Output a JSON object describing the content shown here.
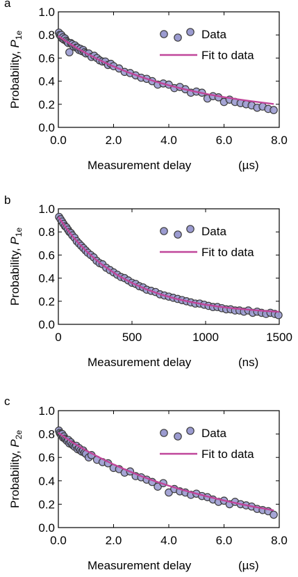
{
  "colors": {
    "marker_fill": "#9b9bd0",
    "marker_stroke": "#3c3c3c",
    "fit_line": "#c0469a",
    "axis": "#000000"
  },
  "chart_data": [
    {
      "type": "scatter",
      "panel_label": "a",
      "ylabel_prefix": "Probability, ",
      "ylabel_symbol": "P",
      "ylabel_subscript": "1e",
      "xlabel": "Measurement delay",
      "xunit": "(µs)",
      "xlim": [
        0,
        8
      ],
      "ylim": [
        0,
        1
      ],
      "xticks": [
        0,
        2,
        4,
        6,
        8
      ],
      "xtick_labels": [
        "0.0",
        "2.0",
        "4.0",
        "6.0",
        "8.0"
      ],
      "yticks": [
        0,
        0.2,
        0.4,
        0.6,
        0.8,
        1.0
      ],
      "ytick_labels": [
        "0.0",
        "0.2",
        "0.4",
        "0.6",
        "0.8",
        "1.0"
      ],
      "legend": [
        "Data",
        "Fit to data"
      ],
      "legend_position": "top-right",
      "fit": {
        "name": "Fit to data",
        "x": [
          0,
          0.25,
          0.5,
          0.75,
          1,
          1.5,
          2,
          2.5,
          3,
          3.5,
          4,
          4.5,
          5,
          5.5,
          6,
          6.5,
          7,
          7.5,
          7.8
        ],
        "y": [
          0.79,
          0.75,
          0.712,
          0.676,
          0.643,
          0.581,
          0.527,
          0.479,
          0.436,
          0.398,
          0.364,
          0.334,
          0.307,
          0.283,
          0.262,
          0.243,
          0.226,
          0.211,
          0.202
        ]
      },
      "data": {
        "name": "Data",
        "x": [
          0.02,
          0.05,
          0.08,
          0.11,
          0.14,
          0.17,
          0.2,
          0.24,
          0.28,
          0.32,
          0.36,
          0.4,
          0.45,
          0.5,
          0.55,
          0.6,
          0.65,
          0.7,
          0.75,
          0.8,
          0.85,
          0.9,
          0.95,
          1.0,
          1.1,
          1.2,
          1.3,
          1.4,
          1.5,
          1.6,
          1.7,
          1.8,
          1.9,
          2.0,
          2.2,
          2.4,
          2.6,
          2.8,
          3.0,
          3.2,
          3.4,
          3.6,
          3.8,
          4.0,
          4.2,
          4.4,
          4.6,
          4.8,
          5.0,
          5.2,
          5.4,
          5.6,
          5.8,
          6.0,
          6.2,
          6.4,
          6.6,
          6.8,
          7.0,
          7.2,
          7.4,
          7.6,
          7.8
        ],
        "y": [
          0.82,
          0.8,
          0.79,
          0.8,
          0.77,
          0.78,
          0.76,
          0.77,
          0.75,
          0.74,
          0.73,
          0.65,
          0.73,
          0.72,
          0.7,
          0.71,
          0.69,
          0.69,
          0.67,
          0.68,
          0.66,
          0.67,
          0.65,
          0.64,
          0.64,
          0.61,
          0.62,
          0.6,
          0.58,
          0.57,
          0.57,
          0.54,
          0.55,
          0.53,
          0.51,
          0.48,
          0.47,
          0.45,
          0.43,
          0.42,
          0.4,
          0.37,
          0.38,
          0.37,
          0.34,
          0.35,
          0.33,
          0.3,
          0.31,
          0.3,
          0.25,
          0.27,
          0.26,
          0.22,
          0.24,
          0.22,
          0.21,
          0.2,
          0.19,
          0.17,
          0.18,
          0.16,
          0.15
        ]
      }
    },
    {
      "type": "scatter",
      "panel_label": "b",
      "ylabel_prefix": "Probability, ",
      "ylabel_symbol": "P",
      "ylabel_subscript": "1e",
      "xlabel": "Measurement delay",
      "xunit": "(ns)",
      "xlim": [
        0,
        1500
      ],
      "ylim": [
        0,
        1
      ],
      "xticks": [
        0,
        500,
        1000,
        1500
      ],
      "xtick_labels": [
        "0",
        "500",
        "1000",
        "1500"
      ],
      "yticks": [
        0,
        0.2,
        0.4,
        0.6,
        0.8,
        1.0
      ],
      "ytick_labels": [
        "0.0",
        "0.2",
        "0.4",
        "0.6",
        "0.8",
        "1.0"
      ],
      "legend": [
        "Data",
        "Fit to data"
      ],
      "legend_position": "top-right",
      "fit": {
        "name": "Fit to data",
        "x": [
          0,
          50,
          100,
          150,
          200,
          250,
          300,
          400,
          500,
          600,
          700,
          800,
          900,
          1000,
          1100,
          1200,
          1300,
          1400,
          1500
        ],
        "y": [
          0.93,
          0.84,
          0.757,
          0.686,
          0.622,
          0.565,
          0.514,
          0.427,
          0.358,
          0.302,
          0.257,
          0.221,
          0.193,
          0.17,
          0.152,
          0.137,
          0.126,
          0.116,
          0.109
        ]
      },
      "data": {
        "name": "Data",
        "x": [
          5,
          15,
          25,
          35,
          45,
          55,
          65,
          75,
          85,
          95,
          110,
          125,
          140,
          155,
          170,
          185,
          200,
          220,
          240,
          260,
          280,
          300,
          325,
          350,
          375,
          400,
          425,
          450,
          475,
          500,
          525,
          550,
          575,
          600,
          630,
          660,
          690,
          720,
          750,
          780,
          810,
          840,
          870,
          900,
          930,
          960,
          990,
          1020,
          1050,
          1080,
          1110,
          1140,
          1170,
          1200,
          1230,
          1260,
          1290,
          1320,
          1350,
          1380,
          1410,
          1440,
          1470,
          1495
        ],
        "y": [
          0.93,
          0.91,
          0.89,
          0.87,
          0.85,
          0.84,
          0.82,
          0.8,
          0.79,
          0.77,
          0.75,
          0.72,
          0.7,
          0.68,
          0.66,
          0.64,
          0.62,
          0.6,
          0.58,
          0.55,
          0.53,
          0.52,
          0.49,
          0.47,
          0.45,
          0.43,
          0.41,
          0.4,
          0.38,
          0.36,
          0.35,
          0.33,
          0.32,
          0.3,
          0.29,
          0.28,
          0.26,
          0.25,
          0.24,
          0.23,
          0.22,
          0.21,
          0.2,
          0.19,
          0.18,
          0.18,
          0.17,
          0.16,
          0.15,
          0.15,
          0.14,
          0.13,
          0.13,
          0.12,
          0.12,
          0.11,
          0.12,
          0.1,
          0.11,
          0.1,
          0.09,
          0.1,
          0.09,
          0.08
        ]
      }
    },
    {
      "type": "scatter",
      "panel_label": "c",
      "ylabel_prefix": "Probability, ",
      "ylabel_symbol": "P",
      "ylabel_subscript": "2e",
      "xlabel": "Measurement delay",
      "xunit": "(µs)",
      "xlim": [
        0,
        8
      ],
      "ylim": [
        0,
        1
      ],
      "xticks": [
        0,
        2,
        4,
        6,
        8
      ],
      "xtick_labels": [
        "0.0",
        "2.0",
        "4.0",
        "6.0",
        "8.0"
      ],
      "yticks": [
        0,
        0.2,
        0.4,
        0.6,
        0.8,
        1.0
      ],
      "ytick_labels": [
        "0.0",
        "0.2",
        "0.4",
        "0.6",
        "0.8",
        "1.0"
      ],
      "legend": [
        "Data",
        "Fit to data"
      ],
      "legend_position": "top-right",
      "fit": {
        "name": "Fit to data",
        "x": [
          0,
          0.25,
          0.5,
          0.75,
          1,
          1.5,
          2,
          2.5,
          3,
          3.5,
          4,
          4.5,
          5,
          5.5,
          6,
          6.5,
          7,
          7.5,
          7.8
        ],
        "y": [
          0.81,
          0.77,
          0.73,
          0.695,
          0.66,
          0.598,
          0.54,
          0.488,
          0.44,
          0.397,
          0.358,
          0.322,
          0.29,
          0.26,
          0.232,
          0.206,
          0.182,
          0.16,
          0.148
        ]
      },
      "data": {
        "name": "Data",
        "x": [
          0.02,
          0.05,
          0.08,
          0.11,
          0.14,
          0.17,
          0.2,
          0.24,
          0.28,
          0.32,
          0.36,
          0.4,
          0.45,
          0.5,
          0.55,
          0.6,
          0.65,
          0.7,
          0.75,
          0.8,
          0.85,
          0.9,
          0.95,
          1.0,
          1.1,
          1.2,
          1.4,
          1.6,
          1.8,
          2.0,
          2.2,
          2.4,
          2.6,
          2.8,
          3.0,
          3.2,
          3.4,
          3.6,
          3.8,
          4.0,
          4.2,
          4.4,
          4.6,
          4.8,
          5.0,
          5.2,
          5.4,
          5.6,
          5.8,
          6.0,
          6.2,
          6.4,
          6.6,
          6.8,
          7.0,
          7.2,
          7.4,
          7.6,
          7.8
        ],
        "y": [
          0.83,
          0.81,
          0.8,
          0.79,
          0.8,
          0.77,
          0.78,
          0.76,
          0.75,
          0.74,
          0.75,
          0.72,
          0.73,
          0.71,
          0.7,
          0.69,
          0.7,
          0.67,
          0.68,
          0.66,
          0.65,
          0.66,
          0.64,
          0.63,
          0.6,
          0.62,
          0.58,
          0.56,
          0.55,
          0.51,
          0.5,
          0.47,
          0.48,
          0.44,
          0.43,
          0.41,
          0.39,
          0.35,
          0.38,
          0.3,
          0.33,
          0.31,
          0.3,
          0.28,
          0.29,
          0.27,
          0.26,
          0.24,
          0.22,
          0.23,
          0.2,
          0.22,
          0.2,
          0.19,
          0.18,
          0.16,
          0.15,
          0.14,
          0.11
        ]
      }
    }
  ]
}
